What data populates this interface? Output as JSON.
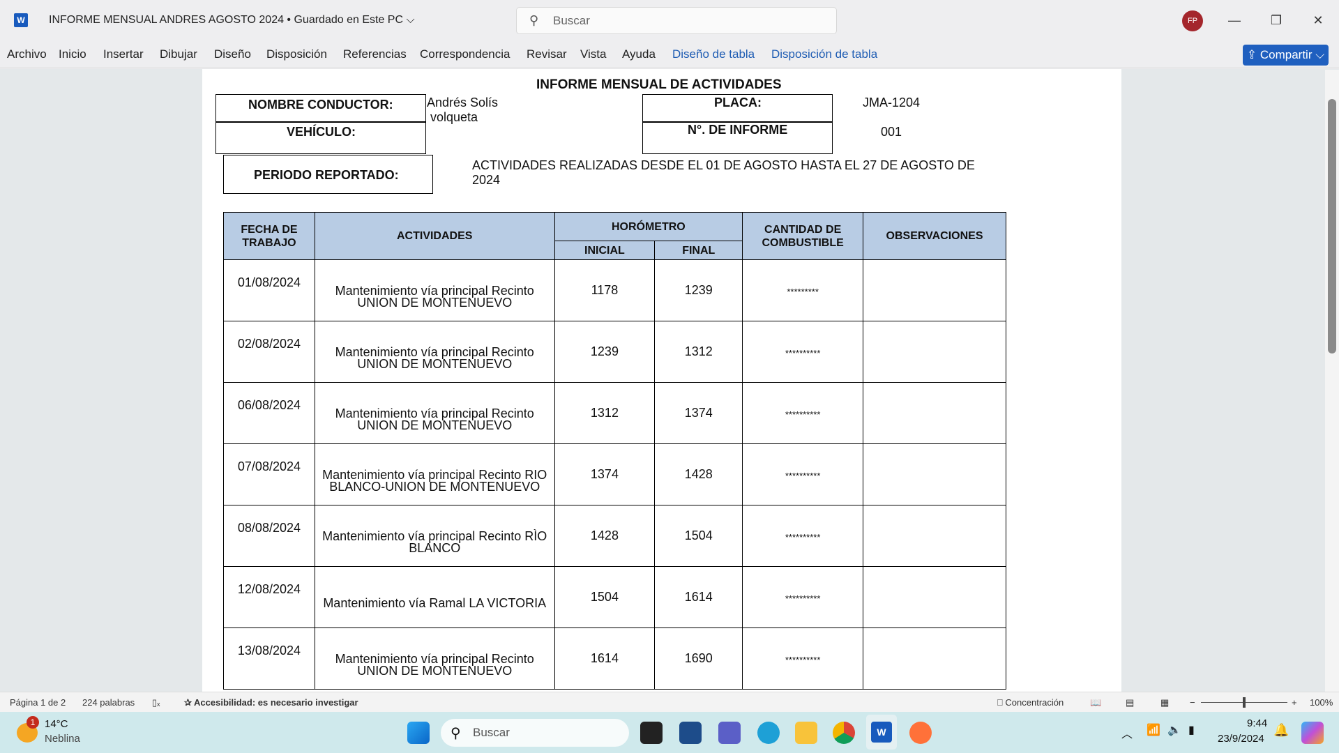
{
  "window": {
    "title": "INFORME MENSUAL  ANDRES AGOSTO 2024 • Guardado en Este PC ⌵",
    "search_placeholder": "Buscar",
    "avatar": "FP",
    "app_icon": "W"
  },
  "ribbon": {
    "tabs": [
      "Archivo",
      "Inicio",
      "Insertar",
      "Dibujar",
      "Diseño",
      "Disposición",
      "Referencias",
      "Correspondencia",
      "Revisar",
      "Vista",
      "Ayuda",
      "Diseño de tabla",
      "Disposición de tabla"
    ],
    "share": "Compartir ⌵",
    "accent": "#1f5fbf"
  },
  "document": {
    "title": "INFORME MENSUAL DE ACTIVIDADES",
    "driver_label": "NOMBRE CONDUCTOR:",
    "driver": "Andrés Solís",
    "vehicle_label": "VEHÍCULO:",
    "vehicle": "volqueta",
    "plate_label": "PLACA:",
    "plate": "JMA-1204",
    "report_label": "N°. DE INFORME",
    "report_no": "001",
    "period_label": "PERIODO REPORTADO:",
    "period_line1": "ACTIVIDADES REALIZADAS DESDE EL 01 DE AGOSTO HASTA EL 27 DE AGOSTO DE",
    "period_line2": "2024",
    "table": {
      "headers": {
        "date": "FECHA DE TRABAJO",
        "activities": "ACTIVIDADES",
        "hourmeter": "HORÓMETRO",
        "initial": "INICIAL",
        "final": "FINAL",
        "fuel": "CANTIDAD DE COMBUSTIBLE",
        "obs": "OBSERVACIONES"
      },
      "header_color": "#b8cce4",
      "rows": [
        {
          "date": "01/08/2024",
          "activity": "Mantenimiento vía principal Recinto UNION DE MONTENUEVO",
          "initial": "1178",
          "final": "1239",
          "fuel": "*********",
          "obs": ""
        },
        {
          "date": "02/08/2024",
          "activity": "Mantenimiento vía principal Recinto UNION DE MONTENUEVO",
          "initial": "1239",
          "final": "1312",
          "fuel": "**********",
          "obs": ""
        },
        {
          "date": "06/08/2024",
          "activity": "Mantenimiento vía principal Recinto UNION DE MONTENUEVO",
          "initial": "1312",
          "final": "1374",
          "fuel": "**********",
          "obs": ""
        },
        {
          "date": "07/08/2024",
          "activity": "Mantenimiento vía principal Recinto RIO BLANCO-UNION DE MONTENUEVO",
          "initial": "1374",
          "final": "1428",
          "fuel": "**********",
          "obs": ""
        },
        {
          "date": "08/08/2024",
          "activity": "Mantenimiento vía principal Recinto RÌO BLANCO",
          "initial": "1428",
          "final": "1504",
          "fuel": "**********",
          "obs": ""
        },
        {
          "date": "12/08/2024",
          "activity": "Mantenimiento vía Ramal LA VICTORIA",
          "initial": "1504",
          "final": "1614",
          "fuel": "**********",
          "obs": ""
        },
        {
          "date": "13/08/2024",
          "activity": "Mantenimiento vía principal Recinto UNION DE MONTENUEVO",
          "initial": "1614",
          "final": "1690",
          "fuel": "**********",
          "obs": ""
        }
      ]
    }
  },
  "status": {
    "page": "Página 1 de 2",
    "words": "224 palabras",
    "accessibility": "Accesibilidad: es necesario investigar",
    "focus": "Concentración",
    "zoom": "100%",
    "zoom_level_percent": 100
  },
  "taskbar": {
    "temp": "14°C",
    "weather": "Neblina",
    "badge": "1",
    "search": "Buscar",
    "time": "9:44",
    "date": "23/9/2024"
  }
}
